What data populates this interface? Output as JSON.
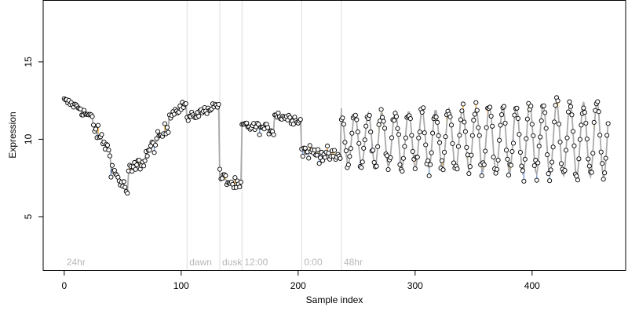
{
  "chart_data": {
    "type": "scatter",
    "title": "",
    "xlabel": "Sample index",
    "ylabel": "Expression",
    "xlim": [
      -18,
      480
    ],
    "ylim": [
      1.5,
      19
    ],
    "x_ticks": [
      0,
      100,
      200,
      300,
      400
    ],
    "x_tick_labels": [
      "0",
      "100",
      "200",
      "300",
      "400"
    ],
    "y_ticks": [
      5,
      10,
      15
    ],
    "y_tick_labels": [
      "5",
      "10",
      "15"
    ],
    "grid": false,
    "legend": "none",
    "colors": {
      "fitted_line": "#aaaaaa",
      "residual_above": "#f5a623",
      "residual_below": "#6a95d6",
      "separator": "#dddddd",
      "phase_label": "#b8b8b8",
      "point_edge": "#000000",
      "point_fill": "#ffffff"
    },
    "phases": [
      {
        "label": "24hr",
        "start": 0,
        "end": 105
      },
      {
        "label": "dawn",
        "start": 105,
        "end": 133
      },
      {
        "label": "dusk",
        "start": 133,
        "end": 152
      },
      {
        "label": "12:00",
        "start": 152,
        "end": 203
      },
      {
        "label": "0:00",
        "start": 203,
        "end": 237
      },
      {
        "label": "48hr",
        "start": 237,
        "end": 465
      }
    ],
    "segment_shapes": [
      {
        "x0": 0,
        "x1": 15,
        "y0": 12.5,
        "y1": 12.0,
        "noise": 0.18
      },
      {
        "x0": 15,
        "x1": 25,
        "y0": 11.8,
        "y1": 11.4,
        "noise": 0.2
      },
      {
        "x0": 25,
        "x1": 40,
        "y0": 10.8,
        "y1": 9.2,
        "noise": 0.35
      },
      {
        "x0": 40,
        "x1": 55,
        "y0": 8.2,
        "y1": 6.6,
        "noise": 0.35
      },
      {
        "x0": 55,
        "x1": 70,
        "y0": 7.8,
        "y1": 8.7,
        "noise": 0.4
      },
      {
        "x0": 70,
        "x1": 90,
        "y0": 9.0,
        "y1": 10.8,
        "noise": 0.35
      },
      {
        "x0": 90,
        "x1": 105,
        "y0": 11.6,
        "y1": 12.3,
        "noise": 0.2
      },
      {
        "x0": 105,
        "x1": 133,
        "y0": 11.3,
        "y1": 12.3,
        "noise": 0.2
      },
      {
        "x0": 133,
        "x1": 152,
        "y0": 7.6,
        "y1": 6.8,
        "noise": 0.35
      },
      {
        "x0": 152,
        "x1": 180,
        "y0": 10.9,
        "y1": 10.6,
        "noise": 0.25
      },
      {
        "x0": 180,
        "x1": 203,
        "y0": 11.6,
        "y1": 11.2,
        "noise": 0.22
      },
      {
        "x0": 203,
        "x1": 237,
        "y0": 9.3,
        "y1": 8.8,
        "noise": 0.35
      }
    ],
    "oscillation": {
      "x0": 237,
      "x1": 465,
      "center": 10.0,
      "amplitude_start": 1.6,
      "amplitude_end": 2.5,
      "period": 11.5,
      "phase": 1.5708,
      "noise": 0.4
    }
  }
}
